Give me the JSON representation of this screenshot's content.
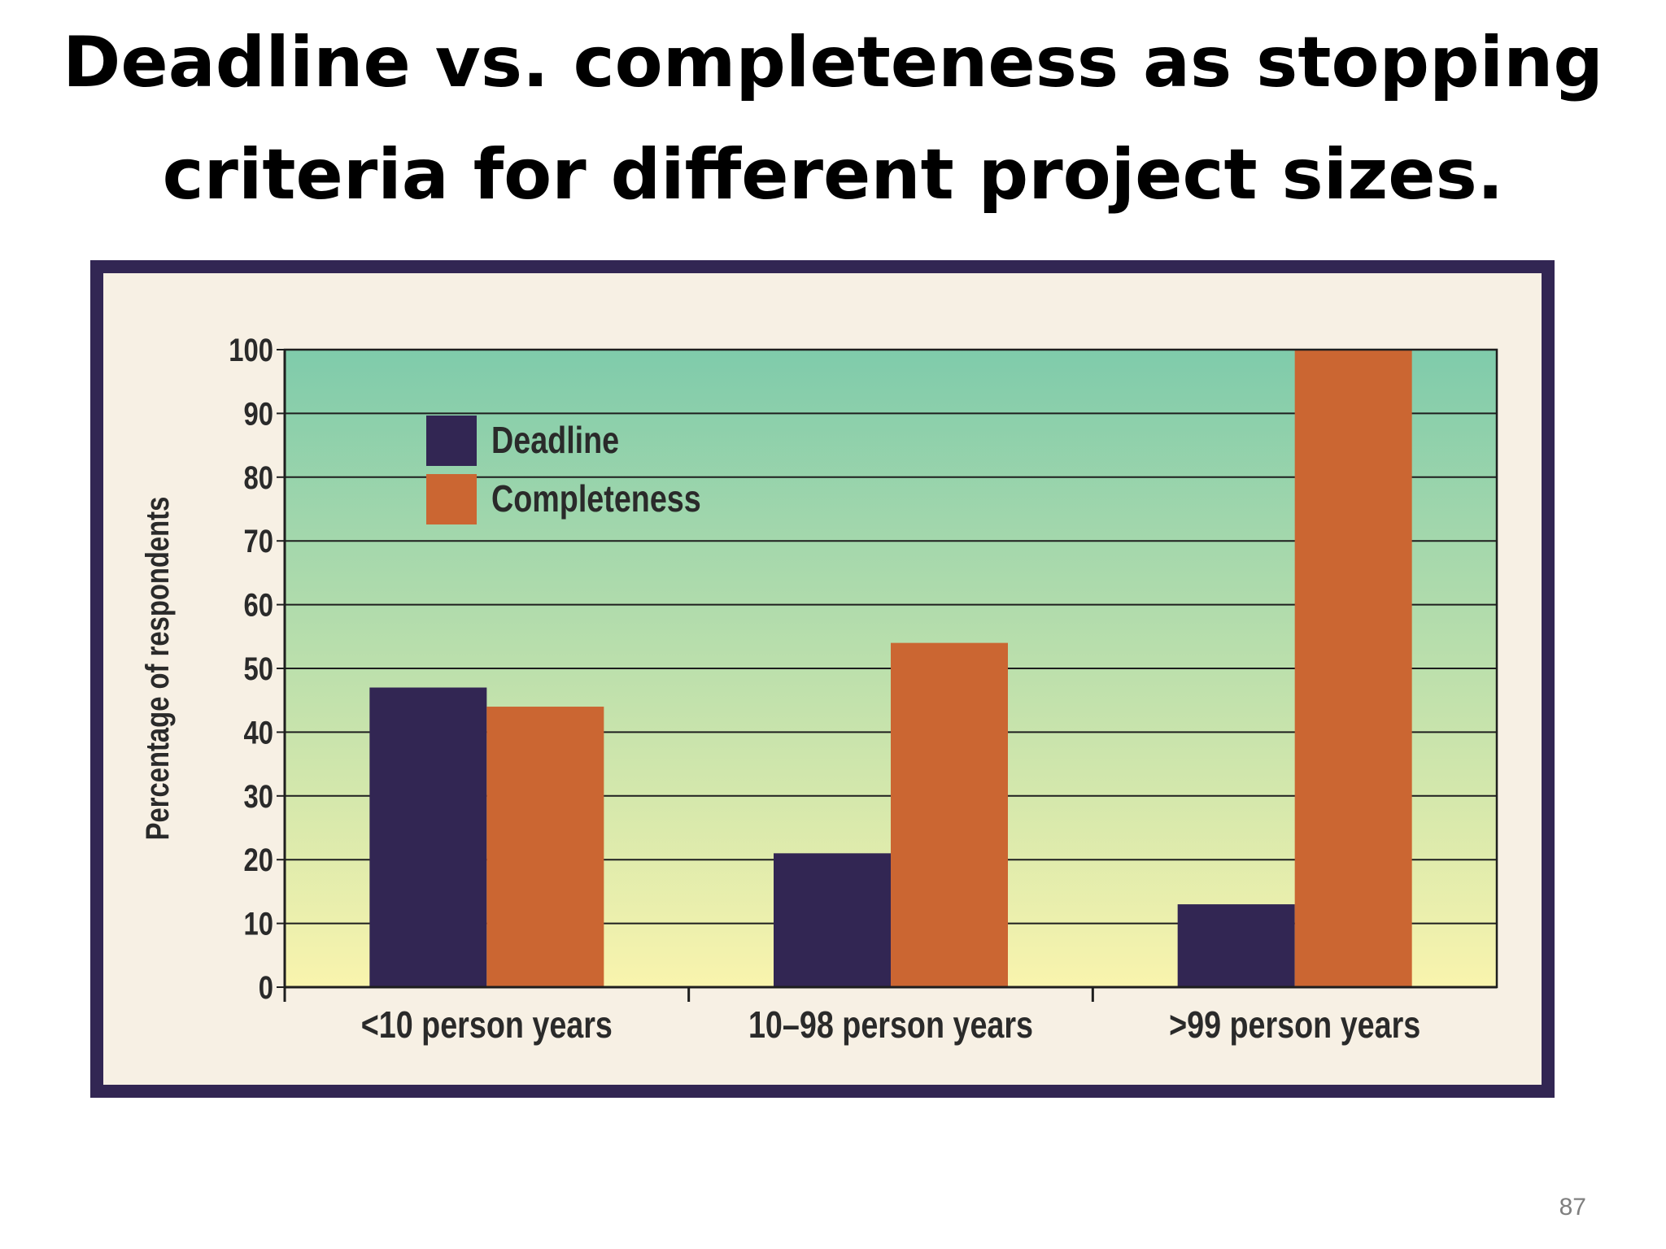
{
  "slide": {
    "title_line1": "Deadline vs. completeness as stopping",
    "title_line2": "criteria for different project sizes.",
    "page_number": "87"
  },
  "colors": {
    "deadline": "#322653",
    "completeness": "#cb6632",
    "frame": "#322653",
    "frame_fill": "#f7f0e4",
    "plot_top": "#7fcbab",
    "plot_bottom": "#f9f4ad",
    "grid": "#1e1e1e"
  },
  "chart_data": {
    "type": "bar",
    "title": "",
    "xlabel": "",
    "ylabel": "Percentage of respondents",
    "categories": [
      "<10 person years",
      "10–98 person years",
      ">99 person years"
    ],
    "series": [
      {
        "name": "Deadline",
        "values": [
          47,
          21,
          13
        ]
      },
      {
        "name": "Completeness",
        "values": [
          44,
          54,
          100
        ]
      }
    ],
    "ylim": [
      0,
      100
    ],
    "yticks": [
      0,
      10,
      20,
      30,
      40,
      50,
      60,
      70,
      80,
      90,
      100
    ],
    "grid": true,
    "legend": "top-left"
  }
}
